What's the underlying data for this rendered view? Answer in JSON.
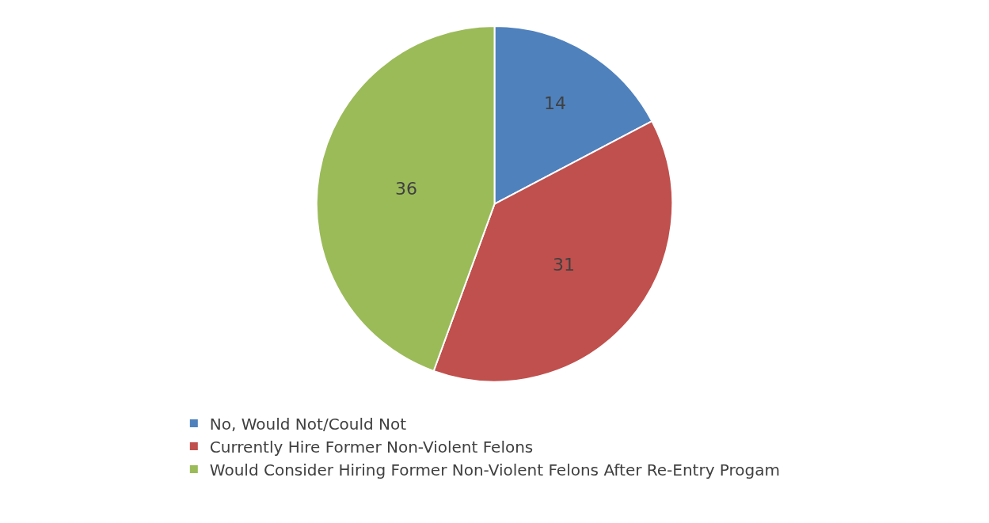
{
  "chart_data": {
    "type": "pie",
    "categories": [
      "No, Would Not/Could Not",
      "Currently Hire Former Non-Violent Felons",
      "Would Consider Hiring Former Non-Violent Felons After Re-Entry Progam"
    ],
    "values": [
      14,
      31,
      36
    ],
    "colors": [
      "#4f81bd",
      "#c0504d",
      "#9bbb59"
    ],
    "data_labels": true,
    "legend": "bottom"
  }
}
